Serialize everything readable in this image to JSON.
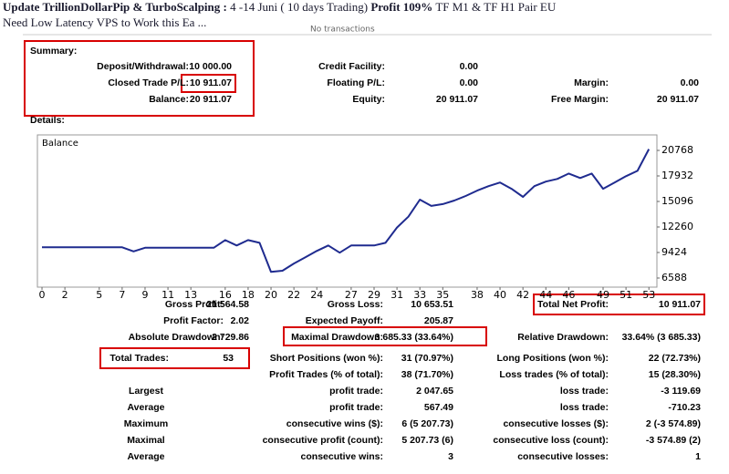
{
  "header": {
    "title_bold": "Update TrillionDollarPip & TurboScalping :",
    "title_period": "4 -14 Juni ( 10 days Trading)",
    "title_profit": "Profit 109%",
    "title_rest": "TF M1 & TF H1 Pair EU",
    "subtitle": "Need Low Latency VPS to Work this Ea ...",
    "note": "No transactions"
  },
  "summary": {
    "title": "Summary:",
    "rows": [
      [
        {
          "label": "Deposit/Withdrawal:",
          "value": "10 000.00"
        },
        {
          "label": "Credit Facility:",
          "value": "0.00"
        },
        null
      ],
      [
        {
          "label": "Closed Trade P/L:",
          "value": "10 911.07"
        },
        {
          "label": "Floating P/L:",
          "value": "0.00"
        },
        {
          "label": "Margin:",
          "value": "0.00"
        }
      ],
      [
        {
          "label": "Balance:",
          "value": "20 911.07"
        },
        {
          "label": "Equity:",
          "value": "20 911.07"
        },
        {
          "label": "Free Margin:",
          "value": "20 911.07"
        }
      ]
    ]
  },
  "details": {
    "title": "Details:",
    "rows": [
      [
        {
          "label": "Gross Profit:",
          "value": "21 564.58"
        },
        {
          "label": "Gross Loss:",
          "value": "10 653.51"
        },
        {
          "label": "Total Net Profit:",
          "value": "10 911.07"
        }
      ],
      [
        {
          "label": "Profit Factor:",
          "value": "2.02"
        },
        {
          "label": "Expected Payoff:",
          "value": "205.87"
        },
        null
      ],
      [
        {
          "label": "Absolute Drawdown:",
          "value": "2 729.86"
        },
        {
          "label": "Maximal Drawdown:",
          "value": "3 685.33 (33.64%)"
        },
        {
          "label": "Relative Drawdown:",
          "value": "33.64% (3 685.33)"
        }
      ],
      [
        {
          "label": "Total Trades:",
          "value": "53"
        },
        {
          "label": "Short Positions (won %):",
          "value": "31 (70.97%)"
        },
        {
          "label": "Long Positions (won %):",
          "value": "22 (72.73%)"
        }
      ],
      [
        null,
        {
          "label": "Profit Trades (% of total):",
          "value": "38 (71.70%)"
        },
        {
          "label": "Loss trades (% of total):",
          "value": "15 (28.30%)"
        }
      ],
      [
        {
          "label": "Largest"
        },
        {
          "label": "profit trade:",
          "value": "2 047.65"
        },
        {
          "label": "loss trade:",
          "value": "-3 119.69"
        }
      ],
      [
        {
          "label": "Average"
        },
        {
          "label": "profit trade:",
          "value": "567.49"
        },
        {
          "label": "loss trade:",
          "value": "-710.23"
        }
      ],
      [
        {
          "label": "Maximum"
        },
        {
          "label": "consecutive wins ($):",
          "value": "6 (5 207.73)"
        },
        {
          "label": "consecutive losses ($):",
          "value": "2 (-3 574.89)"
        }
      ],
      [
        {
          "label": "Maximal"
        },
        {
          "label": "consecutive profit (count):",
          "value": "5 207.73 (6)"
        },
        {
          "label": "consecutive loss (count):",
          "value": "-3 574.89 (2)"
        }
      ],
      [
        {
          "label": "Average"
        },
        {
          "label": "consecutive wins:",
          "value": "3"
        },
        {
          "label": "consecutive losses:",
          "value": "1"
        }
      ]
    ]
  },
  "chart_data": {
    "type": "line",
    "title": "Balance",
    "color": "#1f2b8f",
    "x": [
      0,
      1,
      2,
      3,
      4,
      5,
      6,
      7,
      8,
      9,
      10,
      11,
      12,
      13,
      14,
      15,
      16,
      17,
      18,
      19,
      20,
      21,
      22,
      23,
      24,
      25,
      26,
      27,
      28,
      29,
      30,
      31,
      32,
      33,
      34,
      35,
      36,
      37,
      38,
      39,
      40,
      41,
      42,
      43,
      44,
      45,
      46,
      47,
      48,
      49,
      50,
      51,
      52,
      53
    ],
    "values": [
      10000,
      10000,
      10000,
      10000,
      10000,
      10000,
      10000,
      10000,
      9550,
      9950,
      9950,
      9950,
      9950,
      9950,
      9950,
      9950,
      10800,
      10200,
      10800,
      10500,
      7270.14,
      7400,
      8200,
      8900,
      9600,
      10200,
      9400,
      10200,
      10200,
      10200,
      10500,
      12200,
      13400,
      15300,
      14600,
      14800,
      15200,
      15700,
      16300,
      16800,
      17200,
      16500,
      15600,
      16800,
      17300,
      17600,
      18200,
      17700,
      18200,
      16500,
      17200,
      17900,
      18500,
      20911.07
    ],
    "xlim": [
      -0.4,
      53.7
    ],
    "xticks": [
      0,
      2,
      5,
      7,
      9,
      11,
      13,
      16,
      18,
      20,
      22,
      24,
      27,
      29,
      31,
      33,
      35,
      38,
      40,
      42,
      44,
      46,
      49,
      51,
      53
    ],
    "ylim": [
      5575,
      22490
    ],
    "yticks": [
      6588,
      9424,
      12260,
      15096,
      17932,
      20768
    ]
  }
}
